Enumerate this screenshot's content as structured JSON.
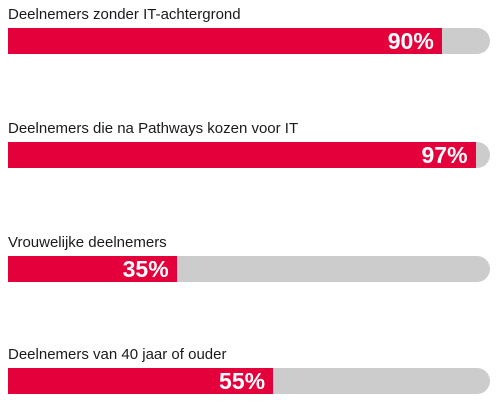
{
  "colors": {
    "fill": "#e4003a",
    "track": "#cccccc",
    "label_text": "#1a1a1a",
    "value_text": "#ffffff"
  },
  "chart_data": {
    "type": "bar",
    "orientation": "horizontal",
    "max": 100,
    "unit": "%",
    "grid": false,
    "categories": [
      "Deelnemers zonder IT-achtergrond",
      "Deelnemers die na Pathways kozen voor IT",
      "Vrouwelijke deelnemers",
      "Deelnemers van 40 jaar of ouder"
    ],
    "values": [
      90,
      97,
      35,
      55
    ],
    "value_labels": [
      "90%",
      "97%",
      "35%",
      "55%"
    ]
  }
}
